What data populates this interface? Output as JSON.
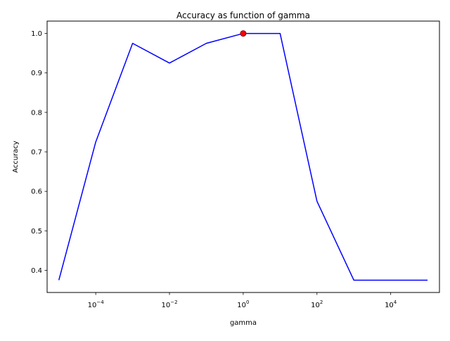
{
  "chart_data": {
    "type": "line",
    "title": "Accuracy as function of gamma",
    "xlabel": "gamma",
    "ylabel": "Accuracy",
    "xscale": "log",
    "xlim": [
      4.8e-06,
      210000
    ],
    "ylim": [
      0.3438,
      1.0313
    ],
    "grid": false,
    "x_ticks": [
      {
        "value": 0.0001,
        "base": "10",
        "exp": "−4"
      },
      {
        "value": 0.01,
        "base": "10",
        "exp": "−2"
      },
      {
        "value": 1,
        "base": "10",
        "exp": "0"
      },
      {
        "value": 100,
        "base": "10",
        "exp": "2"
      },
      {
        "value": 10000,
        "base": "10",
        "exp": "4"
      }
    ],
    "y_ticks": [
      "0.4",
      "0.5",
      "0.6",
      "0.7",
      "0.8",
      "0.9",
      "1.0"
    ],
    "series": [
      {
        "color": "#0000ff",
        "x": [
          1e-05,
          0.0001,
          0.001,
          0.01,
          0.1,
          1,
          10,
          100,
          1000,
          10000,
          100000
        ],
        "y": [
          0.375,
          0.725,
          0.975,
          0.925,
          0.975,
          1.0,
          1.0,
          0.575,
          0.375,
          0.375,
          0.375
        ]
      }
    ],
    "highlight_point": {
      "x": 1,
      "y": 1.0,
      "color": "#ff0000",
      "edge_color": "#8b0000"
    }
  }
}
